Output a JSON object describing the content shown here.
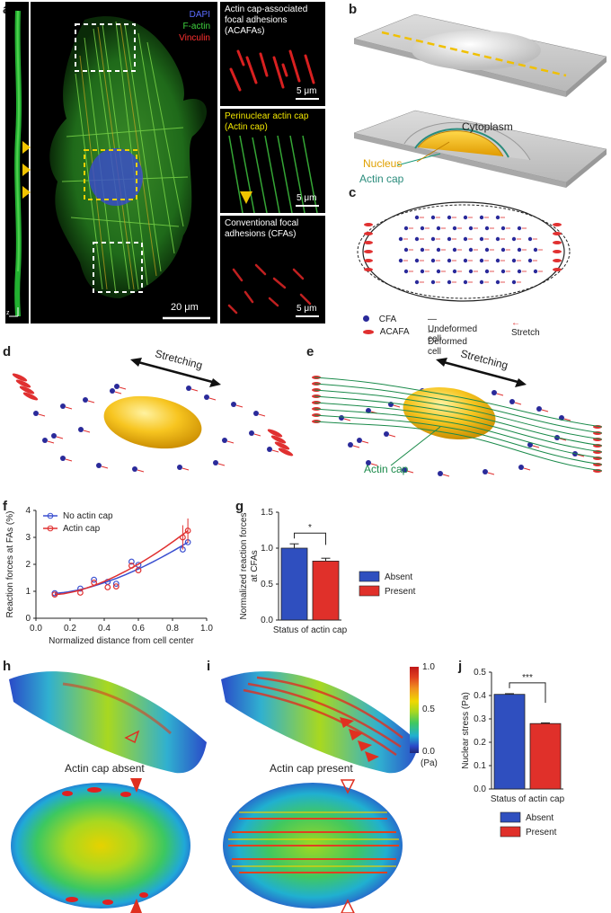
{
  "panels": {
    "a": {
      "label": "a",
      "legend": [
        {
          "text": "DAPI",
          "color": "#4a5aff"
        },
        {
          "text": "F-actin",
          "color": "#3fd43f"
        },
        {
          "text": "Vinculin",
          "color": "#ff3030"
        }
      ],
      "scalebar_main": "20 μm",
      "axes_left": "z",
      "axes_y": "y",
      "axes_x": "x",
      "insets": [
        {
          "title": "Actin cap-associated focal adhesions (ACAFAs)",
          "title_color": "#ffffff",
          "scale": "5 μm"
        },
        {
          "title": "Perinuclear actin cap (Actin cap)",
          "title_color": "#f2e600",
          "scale": "5 μm"
        },
        {
          "title": "Conventional focal adhesions (CFAs)",
          "title_color": "#ffffff",
          "scale": "5 μm"
        }
      ]
    },
    "b": {
      "label": "b",
      "cytoplasm": "Cytoplasm",
      "nucleus": "Nucleus",
      "actin_cap": "Actin cap",
      "nucleus_color": "#f0a800",
      "actin_cap_color": "#2a8c7c"
    },
    "c": {
      "label": "c",
      "legend": {
        "cfa": "CFA",
        "acafa": "ACAFA",
        "undeformed": "Undeformed cell",
        "deformed": "Deformed cell",
        "stretch": "Stretch"
      }
    },
    "d": {
      "label": "d",
      "stretching": "Stretching"
    },
    "e": {
      "label": "e",
      "stretching": "Stretching",
      "actin_cap": "Actin cap",
      "actin_cap_color": "#1a8a4a"
    },
    "f": {
      "label": "f"
    },
    "g": {
      "label": "g"
    },
    "h": {
      "label": "h",
      "caption": "Actin cap absent"
    },
    "i": {
      "label": "i",
      "caption": "Actin cap present",
      "colorbar_ticks": [
        "1.0",
        "0.5",
        "0.0"
      ],
      "colorbar_unit": "(Pa)"
    },
    "j": {
      "label": "j"
    }
  },
  "chart_data": [
    {
      "id": "f",
      "type": "scatter",
      "xlabel": "Normalized distance from cell center",
      "ylabel": "Reaction forces at FAs (%)",
      "xlim": [
        0,
        1.0
      ],
      "ylim": [
        0,
        4
      ],
      "xticks": [
        "0.0",
        "0.2",
        "0.4",
        "0.6",
        "0.8",
        "1.0"
      ],
      "yticks": [
        "0",
        "1",
        "2",
        "3",
        "4"
      ],
      "series": [
        {
          "name": "No actin cap",
          "color": "#3a4fd0",
          "x": [
            0.11,
            0.26,
            0.34,
            0.42,
            0.47,
            0.56,
            0.6,
            0.86,
            0.89
          ],
          "y": [
            0.93,
            1.1,
            1.43,
            1.35,
            1.28,
            2.1,
            1.98,
            2.55,
            2.82
          ]
        },
        {
          "name": "Actin cap",
          "color": "#e03030",
          "x": [
            0.11,
            0.26,
            0.34,
            0.42,
            0.47,
            0.56,
            0.6,
            0.86,
            0.89
          ],
          "y": [
            0.88,
            0.95,
            1.32,
            1.15,
            1.18,
            1.95,
            1.78,
            3.0,
            3.25
          ]
        }
      ]
    },
    {
      "id": "g",
      "type": "bar",
      "xlabel": "Status of actin cap",
      "ylabel": "Normalized reaction forces at CFAs",
      "ylim": [
        0,
        1.5
      ],
      "yticks": [
        "0.0",
        "0.5",
        "1.0",
        "1.5"
      ],
      "categories": [
        "Absent",
        "Present"
      ],
      "values": [
        1.0,
        0.82
      ],
      "errors": [
        0.06,
        0.04
      ],
      "colors": [
        "#2f4fbf",
        "#e0302a"
      ],
      "significance": "*"
    },
    {
      "id": "j",
      "type": "bar",
      "xlabel": "Status of actin cap",
      "ylabel": "Nuclear stress (Pa)",
      "ylim": [
        0,
        0.5
      ],
      "yticks": [
        "0.0",
        "0.1",
        "0.2",
        "0.3",
        "0.4",
        "0.5"
      ],
      "categories": [
        "Absent",
        "Present"
      ],
      "values": [
        0.405,
        0.28
      ],
      "errors": [
        0.003,
        0.003
      ],
      "colors": [
        "#2f4fbf",
        "#e0302a"
      ],
      "significance": "***"
    }
  ]
}
